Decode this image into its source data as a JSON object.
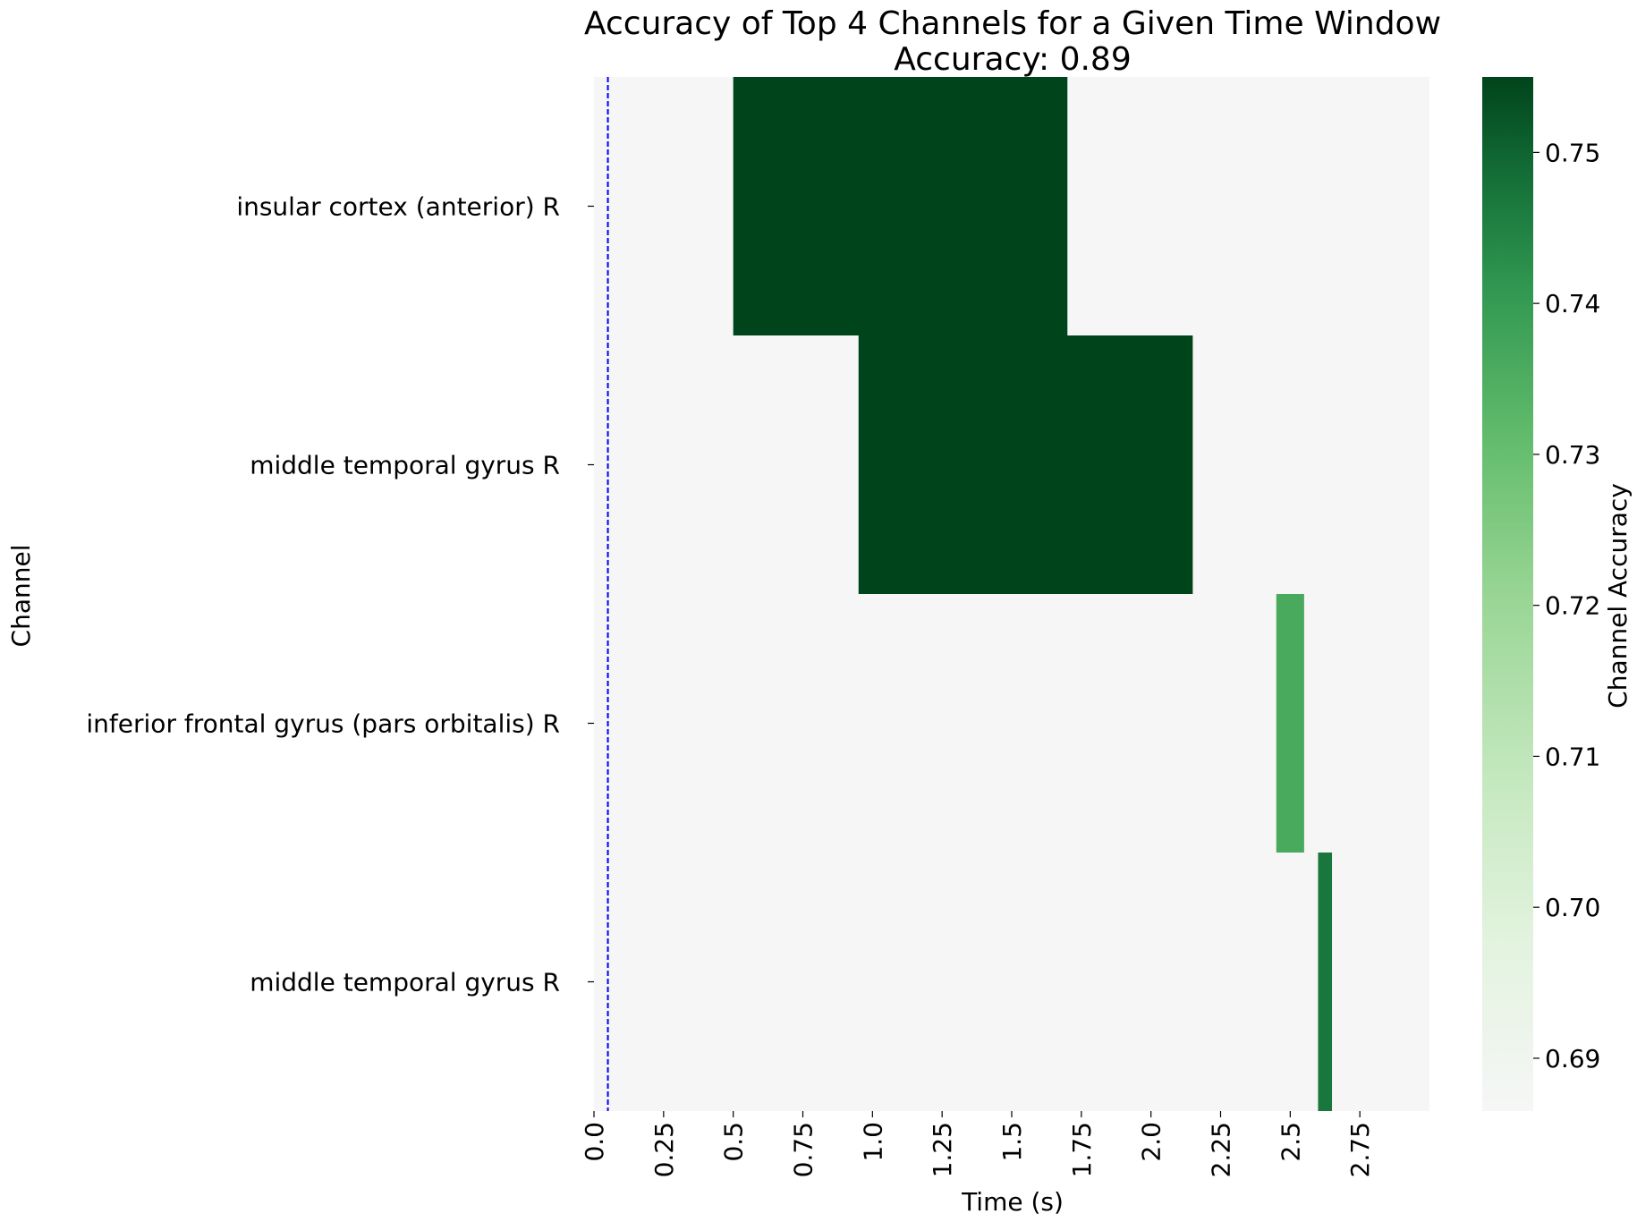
{
  "chart_data": {
    "type": "heatmap",
    "title": "Accuracy of Top 4 Channels for a Given Time Window",
    "subtitle": "Accuracy: 0.89",
    "xlabel": "Time (s)",
    "ylabel": "Channel",
    "colorbar_label": "Channel Accuracy",
    "x_range": [
      0.0,
      3.0
    ],
    "x_ticks": [
      0.0,
      0.25,
      0.5,
      0.75,
      1.0,
      1.25,
      1.5,
      1.75,
      2.0,
      2.25,
      2.5,
      2.75
    ],
    "x_tick_labels": [
      "0.0",
      "0.25",
      "0.5",
      "0.75",
      "1.0",
      "1.25",
      "1.5",
      "1.75",
      "2.0",
      "2.25",
      "2.5",
      "2.75"
    ],
    "channels": [
      "insular cortex (anterior) R",
      "middle temporal gyrus R",
      "inferior frontal gyrus (pars orbitalis) R",
      "middle temporal gyrus R"
    ],
    "windows": [
      {
        "channel_index": 0,
        "start": 0.5,
        "end": 1.7,
        "accuracy": 0.755
      },
      {
        "channel_index": 1,
        "start": 0.95,
        "end": 2.15,
        "accuracy": 0.755
      },
      {
        "channel_index": 2,
        "start": 2.45,
        "end": 2.55,
        "accuracy": 0.736
      },
      {
        "channel_index": 3,
        "start": 2.6,
        "end": 2.65,
        "accuracy": 0.747
      }
    ],
    "background_value": 0.6865,
    "reference_line_x": 0.05,
    "reference_line_color": "#0000ff",
    "colormap": "Greens",
    "colorbar_range": [
      0.6865,
      0.755
    ],
    "colorbar_ticks": [
      0.69,
      0.7,
      0.71,
      0.72,
      0.73,
      0.74,
      0.75
    ],
    "colorbar_tick_labels": [
      "0.69",
      "0.70",
      "0.71",
      "0.72",
      "0.73",
      "0.74",
      "0.75"
    ],
    "grid": false,
    "legend": "colorbar-right"
  }
}
